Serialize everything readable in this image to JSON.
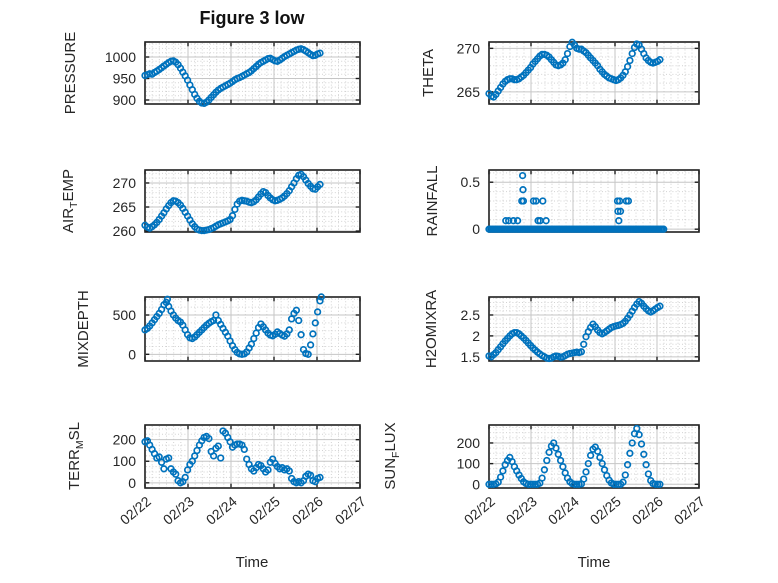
{
  "figure": {
    "title": "Figure 3 low",
    "marker_color": "#0072BD",
    "axis_color": "#1f1f1f",
    "grid_color": "#c6c6c6",
    "minor_grid_color": "#d2d2d2",
    "text_color": "#262626",
    "background": "#ffffff",
    "x_axis": {
      "label": "Time",
      "xlim": [
        0,
        5
      ],
      "tick_labels": [
        "02/22",
        "02/23",
        "02/24",
        "02/25",
        "02/26",
        "02/27"
      ],
      "minor_divisions_per_day": 6
    }
  },
  "chart_data": [
    {
      "type": "scatter",
      "name": "pressure",
      "ylabel": {
        "pre": "PRESSURE",
        "sub": "",
        "post": ""
      },
      "ylim": [
        890.7,
        1034.9
      ],
      "yticks": [
        900,
        950,
        1000
      ],
      "ytick_labels": [
        "900",
        "950",
        "1000"
      ],
      "y_minor_step": 10,
      "series": {
        "x0": 0,
        "dx": 0.055,
        "y": [
          957,
          959,
          961,
          960,
          964,
          967,
          971,
          975,
          979,
          983,
          987,
          990,
          991,
          988,
          982,
          974,
          965,
          956,
          946,
          935,
          924,
          913,
          904,
          897,
          893,
          892,
          895,
          900,
          906,
          912,
          918,
          923,
          927,
          930,
          933,
          936,
          939,
          943,
          947,
          950,
          952,
          955,
          958,
          961,
          964,
          968,
          973,
          978,
          983,
          987,
          990,
          993,
          996,
          997,
          994,
          991,
          990,
          993,
          997,
          1001,
          1004,
          1007,
          1010,
          1013,
          1016,
          1018,
          1019,
          1017,
          1014,
          1010,
          1006,
          1003,
          1004,
          1007,
          1009
        ]
      }
    },
    {
      "type": "scatter",
      "name": "theta",
      "ylabel": {
        "pre": "THETA",
        "sub": "",
        "post": ""
      },
      "ylim": [
        263.6,
        270.73
      ],
      "yticks": [
        265,
        270
      ],
      "ytick_labels": [
        "265",
        "270"
      ],
      "y_minor_step": 1,
      "series": {
        "x0": 0,
        "dx": 0.055,
        "y": [
          264.8,
          264.5,
          264.4,
          264.7,
          265.1,
          265.5,
          265.9,
          266.2,
          266.4,
          266.5,
          266.5,
          266.4,
          266.4,
          266.5,
          266.7,
          266.9,
          267.2,
          267.5,
          267.8,
          268.2,
          268.5,
          268.8,
          269.1,
          269.3,
          269.3,
          269.2,
          269.0,
          268.7,
          268.4,
          268.1,
          268.0,
          268.1,
          268.3,
          268.7,
          269.4,
          270.2,
          270.7,
          270.4,
          270.0,
          269.9,
          269.9,
          269.7,
          269.5,
          269.2,
          268.9,
          268.6,
          268.3,
          268.0,
          267.6,
          267.3,
          267.0,
          266.8,
          266.6,
          266.5,
          266.4,
          266.3,
          266.4,
          266.6,
          266.9,
          267.3,
          267.9,
          268.6,
          269.4,
          270.1,
          270.5,
          270.4,
          269.9,
          269.4,
          268.9,
          268.6,
          268.4,
          268.3,
          268.4,
          268.5,
          268.7
        ]
      }
    },
    {
      "type": "scatter",
      "name": "air-temp",
      "ylabel": {
        "pre": "AIR",
        "sub": "T",
        "post": "EMP"
      },
      "ylim": [
        259.8,
        272.7
      ],
      "yticks": [
        260,
        265,
        270
      ],
      "ytick_labels": [
        "260",
        "265",
        "270"
      ],
      "y_minor_step": 1,
      "series": {
        "x0": 0,
        "dx": 0.055,
        "y": [
          261.2,
          260.8,
          260.6,
          260.9,
          261.3,
          261.8,
          262.4,
          263.1,
          263.8,
          264.6,
          265.3,
          265.9,
          266.3,
          266.2,
          265.9,
          265.4,
          264.7,
          263.9,
          263.1,
          262.3,
          261.5,
          260.9,
          260.4,
          260.2,
          260.1,
          260.1,
          260.2,
          260.3,
          260.5,
          260.7,
          261.0,
          261.3,
          261.5,
          261.7,
          261.9,
          262.1,
          262.4,
          263.2,
          264.5,
          265.6,
          266.2,
          266.4,
          266.3,
          266.2,
          266.0,
          265.9,
          266.1,
          266.5,
          267.1,
          267.7,
          268.2,
          268.0,
          267.4,
          266.9,
          266.5,
          266.3,
          266.4,
          266.6,
          266.9,
          267.3,
          267.8,
          268.4,
          269.2,
          270.0,
          270.9,
          271.6,
          271.8,
          271.3,
          270.6,
          269.9,
          269.3,
          268.8,
          268.7,
          269.2,
          269.7
        ]
      }
    },
    {
      "type": "scatter",
      "name": "rainfall",
      "ylabel": {
        "pre": "RAINFALL",
        "sub": "",
        "post": ""
      },
      "ylim": [
        -0.03,
        0.63
      ],
      "yticks": [
        0,
        0.5
      ],
      "ytick_labels": [
        "0",
        "0.5"
      ],
      "y_minor_step": 0.1,
      "series": {
        "runs": [
          {
            "from": 0,
            "to": 4.16,
            "step": 0.04,
            "value": 0
          }
        ],
        "points": [
          [
            0.4,
            0.09
          ],
          [
            0.47,
            0.09
          ],
          [
            0.58,
            0.09
          ],
          [
            0.68,
            0.09
          ],
          [
            0.78,
            0.3
          ],
          [
            0.82,
            0.3
          ],
          [
            0.81,
            0.42
          ],
          [
            0.8,
            0.57
          ],
          [
            1.06,
            0.3
          ],
          [
            1.12,
            0.3
          ],
          [
            1.28,
            0.3
          ],
          [
            1.17,
            0.09
          ],
          [
            1.22,
            0.09
          ],
          [
            1.36,
            0.09
          ],
          [
            3.06,
            0.3
          ],
          [
            3.11,
            0.3
          ],
          [
            3.27,
            0.3
          ],
          [
            3.32,
            0.3
          ],
          [
            3.07,
            0.19
          ],
          [
            3.13,
            0.19
          ],
          [
            3.09,
            0.09
          ]
        ]
      }
    },
    {
      "type": "scatter",
      "name": "mixdepth",
      "ylabel": {
        "pre": "MIXDEPTH",
        "sub": "",
        "post": ""
      },
      "ylim": [
        -85,
        729
      ],
      "yticks": [
        0,
        500
      ],
      "ytick_labels": [
        "0",
        "500"
      ],
      "y_minor_step": 100,
      "series": {
        "x0": 0,
        "dx": 0.055,
        "y": [
          310,
          330,
          360,
          400,
          440,
          480,
          520,
          570,
          630,
          660,
          610,
          550,
          500,
          460,
          430,
          410,
          370,
          310,
          250,
          210,
          200,
          220,
          250,
          280,
          310,
          340,
          370,
          395,
          415,
          430,
          500,
          430,
          380,
          330,
          280,
          230,
          170,
          110,
          60,
          25,
          5,
          0,
          5,
          30,
          80,
          130,
          200,
          270,
          340,
          385,
          350,
          310,
          270,
          245,
          235,
          255,
          285,
          265,
          245,
          230,
          260,
          310,
          450,
          520,
          560,
          430,
          250,
          60,
          10,
          0,
          120,
          260,
          400,
          540,
          680
        ],
        "points": [
          [
            0.52,
            700
          ],
          [
            4.1,
            730
          ]
        ]
      }
    },
    {
      "type": "scatter",
      "name": "h2omixra",
      "ylabel": {
        "pre": "H2OMIXRA",
        "sub": "",
        "post": ""
      },
      "ylim": [
        1.4,
        2.93
      ],
      "yticks": [
        1.5,
        2,
        2.5
      ],
      "ytick_labels": [
        "1.5",
        "2",
        "2.5"
      ],
      "y_minor_step": 0.1,
      "series": {
        "x0": 0,
        "dx": 0.055,
        "y": [
          1.52,
          1.5,
          1.55,
          1.6,
          1.67,
          1.74,
          1.81,
          1.88,
          1.94,
          2.0,
          2.05,
          2.08,
          2.08,
          2.05,
          2.0,
          1.95,
          1.89,
          1.83,
          1.77,
          1.71,
          1.66,
          1.61,
          1.57,
          1.53,
          1.5,
          1.47,
          1.46,
          1.47,
          1.5,
          1.52,
          1.51,
          1.49,
          1.5,
          1.53,
          1.56,
          1.58,
          1.59,
          1.6,
          1.61,
          1.6,
          1.62,
          1.8,
          1.98,
          2.1,
          2.2,
          2.28,
          2.22,
          2.14,
          2.08,
          2.05,
          2.08,
          2.12,
          2.16,
          2.2,
          2.22,
          2.24,
          2.25,
          2.27,
          2.3,
          2.35,
          2.42,
          2.5,
          2.59,
          2.68,
          2.76,
          2.82,
          2.78,
          2.71,
          2.65,
          2.6,
          2.57,
          2.6,
          2.64,
          2.68,
          2.71
        ]
      }
    },
    {
      "type": "scatter",
      "name": "terr-msl",
      "ylabel": {
        "pre": "TERR",
        "sub": "M",
        "post": "SL"
      },
      "ylim": [
        -24,
        268
      ],
      "yticks": [
        0,
        100,
        200
      ],
      "ytick_labels": [
        "0",
        "100",
        "200"
      ],
      "y_minor_step": 25,
      "series": {
        "x0": 0,
        "dx": 0.055,
        "y": [
          190,
          195,
          175,
          155,
          135,
          115,
          120,
          95,
          65,
          110,
          115,
          65,
          50,
          40,
          10,
          0,
          5,
          25,
          60,
          85,
          100,
          125,
          150,
          175,
          195,
          210,
          215,
          205,
          145,
          125,
          160,
          170,
          115,
          240,
          230,
          210,
          190,
          165,
          175,
          180,
          180,
          175,
          155,
          110,
          85,
          65,
          55,
          70,
          85,
          80,
          65,
          50,
          60,
          95,
          110,
          90,
          75,
          65,
          70,
          60,
          65,
          55,
          20,
          5,
          0,
          5,
          0,
          10,
          30,
          40,
          35,
          10,
          5,
          20,
          25
        ]
      }
    },
    {
      "type": "scatter",
      "name": "sun-flux",
      "ylabel": {
        "pre": "SUN",
        "sub": "F",
        "post": "LUX"
      },
      "ylim": [
        -18,
        287
      ],
      "yticks": [
        0,
        100,
        200
      ],
      "ytick_labels": [
        "0",
        "100",
        "200"
      ],
      "y_minor_step": 25,
      "series": {
        "x0": 0,
        "dx": 0.055,
        "y": [
          0,
          0,
          0,
          2,
          10,
          35,
          65,
          95,
          115,
          130,
          110,
          85,
          65,
          45,
          28,
          12,
          4,
          0,
          0,
          0,
          0,
          0,
          5,
          30,
          70,
          115,
          155,
          185,
          200,
          175,
          145,
          115,
          85,
          55,
          30,
          12,
          3,
          0,
          0,
          0,
          2,
          25,
          60,
          100,
          140,
          170,
          180,
          160,
          130,
          100,
          70,
          42,
          20,
          6,
          0,
          0,
          0,
          0,
          10,
          45,
          95,
          150,
          200,
          245,
          270,
          240,
          195,
          145,
          95,
          50,
          18,
          4,
          0,
          0,
          0
        ]
      }
    }
  ]
}
